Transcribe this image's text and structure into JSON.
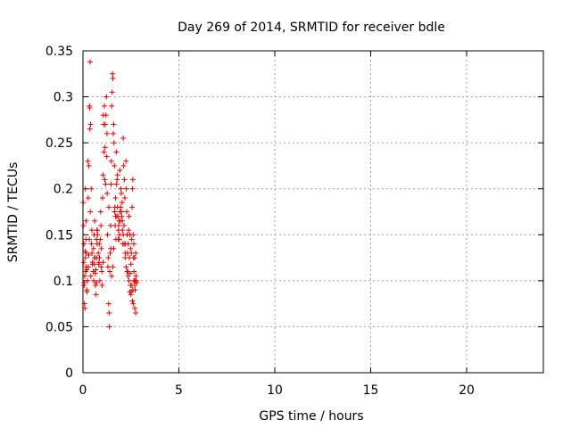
{
  "chart_data": {
    "type": "scatter",
    "title": "Day 269 of 2014, SRMTID for receiver bdle",
    "xlabel": "GPS time / hours",
    "ylabel": "SRMTID / TECUs",
    "xlim": [
      0,
      24
    ],
    "ylim": [
      0,
      0.35
    ],
    "xticks": [
      0,
      5,
      10,
      15,
      20
    ],
    "yticks": [
      0,
      0.05,
      0.1,
      0.15,
      0.2,
      0.25,
      0.3,
      0.35
    ],
    "xtick_labels": [
      "0",
      "5",
      "10",
      "15",
      "20"
    ],
    "ytick_labels": [
      "0",
      "0.05",
      "0.1",
      "0.15",
      "0.2",
      "0.25",
      "0.3",
      "0.35"
    ],
    "grid": true,
    "marker": "+",
    "color": "#e00000",
    "series": [
      {
        "x": [
          0.02,
          0.04,
          0.06,
          0.08,
          0.1,
          0.12,
          0.14,
          0.16,
          0.18,
          0.2,
          0.05,
          0.09,
          0.13,
          0.17,
          0.21,
          0.03,
          0.07,
          0.11,
          0.15,
          0.19,
          0.25,
          0.28,
          0.31,
          0.34,
          0.37,
          0.4,
          0.43,
          0.46,
          0.49,
          0.35,
          0.36,
          0.38,
          0.41,
          0.33,
          0.3,
          0.27,
          0.24,
          0.44,
          0.47,
          0.5,
          0.53,
          0.56,
          0.59,
          0.62,
          0.65,
          0.68,
          0.71,
          0.74,
          0.55,
          0.58,
          0.61,
          0.64,
          0.67,
          0.7,
          0.73,
          0.76,
          0.8,
          0.84,
          0.88,
          0.92,
          0.96,
          1.0,
          1.04,
          1.08,
          0.82,
          0.86,
          0.9,
          0.94,
          0.98,
          1.02,
          1.06,
          1.1,
          1.14,
          1.18,
          1.12,
          1.16,
          1.2,
          1.22,
          1.24,
          1.26,
          1.28,
          1.3,
          1.32,
          1.34,
          1.36,
          1.38,
          1.4,
          1.42,
          1.44,
          1.46,
          1.48,
          1.5,
          1.52,
          1.54,
          1.56,
          1.58,
          1.6,
          1.62,
          1.64,
          1.66,
          1.68,
          1.7,
          1.72,
          1.74,
          1.76,
          1.78,
          1.8,
          1.82,
          1.84,
          1.86,
          1.88,
          1.9,
          1.92,
          1.94,
          1.96,
          1.98,
          2.0,
          2.02,
          2.04,
          2.06,
          2.08,
          2.1,
          2.12,
          2.14,
          2.16,
          2.18,
          2.2,
          2.22,
          2.24,
          2.26,
          2.28,
          2.3,
          2.32,
          2.34,
          2.36,
          2.38,
          2.4,
          2.42,
          2.44,
          2.46,
          2.48,
          2.5,
          2.52,
          2.54,
          2.56,
          2.58,
          2.6,
          2.62,
          2.64,
          2.66,
          2.68,
          2.7,
          2.72,
          2.74,
          2.76,
          2.78,
          2.8,
          1.5,
          1.55,
          1.6,
          1.65,
          1.7,
          1.75,
          1.8,
          1.85,
          1.9,
          1.95,
          2.0,
          2.05,
          2.1,
          2.15,
          2.2,
          2.25,
          2.3,
          2.35,
          2.4,
          2.45,
          2.5,
          2.55,
          2.6,
          2.65,
          2.7,
          2.75,
          1.15,
          1.25,
          1.35,
          1.45,
          0.6,
          0.7,
          0.75,
          0.85,
          0.95,
          1.05,
          2.65,
          2.7,
          2.75,
          2.62,
          2.58,
          2.52,
          2.48
        ],
        "y": [
          0.185,
          0.12,
          0.095,
          0.075,
          0.07,
          0.2,
          0.11,
          0.165,
          0.13,
          0.09,
          0.14,
          0.105,
          0.125,
          0.115,
          0.088,
          0.16,
          0.098,
          0.132,
          0.145,
          0.112,
          0.23,
          0.115,
          0.225,
          0.29,
          0.338,
          0.27,
          0.2,
          0.155,
          0.118,
          0.288,
          0.265,
          0.175,
          0.105,
          0.145,
          0.128,
          0.19,
          0.1,
          0.14,
          0.13,
          0.12,
          0.11,
          0.1,
          0.118,
          0.125,
          0.095,
          0.085,
          0.125,
          0.14,
          0.135,
          0.15,
          0.165,
          0.108,
          0.112,
          0.098,
          0.155,
          0.15,
          0.13,
          0.12,
          0.1,
          0.175,
          0.135,
          0.095,
          0.215,
          0.27,
          0.118,
          0.125,
          0.145,
          0.16,
          0.11,
          0.19,
          0.28,
          0.24,
          0.21,
          0.205,
          0.29,
          0.27,
          0.28,
          0.3,
          0.235,
          0.195,
          0.15,
          0.115,
          0.125,
          0.075,
          0.065,
          0.05,
          0.11,
          0.13,
          0.16,
          0.205,
          0.23,
          0.29,
          0.305,
          0.325,
          0.32,
          0.26,
          0.27,
          0.25,
          0.225,
          0.18,
          0.16,
          0.17,
          0.145,
          0.24,
          0.17,
          0.21,
          0.18,
          0.17,
          0.145,
          0.16,
          0.165,
          0.15,
          0.22,
          0.175,
          0.18,
          0.2,
          0.195,
          0.17,
          0.185,
          0.155,
          0.14,
          0.255,
          0.225,
          0.16,
          0.21,
          0.19,
          0.125,
          0.14,
          0.23,
          0.2,
          0.175,
          0.15,
          0.13,
          0.11,
          0.14,
          0.155,
          0.17,
          0.125,
          0.088,
          0.108,
          0.095,
          0.118,
          0.13,
          0.145,
          0.18,
          0.2,
          0.21,
          0.15,
          0.125,
          0.11,
          0.1,
          0.095,
          0.09,
          0.1,
          0.105,
          0.1,
          0.098,
          0.105,
          0.115,
          0.135,
          0.175,
          0.19,
          0.205,
          0.215,
          0.155,
          0.145,
          0.165,
          0.175,
          0.165,
          0.15,
          0.14,
          0.13,
          0.115,
          0.11,
          0.105,
          0.1,
          0.15,
          0.085,
          0.095,
          0.09,
          0.1,
          0.125,
          0.13,
          0.245,
          0.26,
          0.18,
          0.135,
          0.125,
          0.145,
          0.155,
          0.14,
          0.115,
          0.12,
          0.14,
          0.07,
          0.065,
          0.075,
          0.078,
          0.088,
          0.135
        ]
      }
    ]
  }
}
